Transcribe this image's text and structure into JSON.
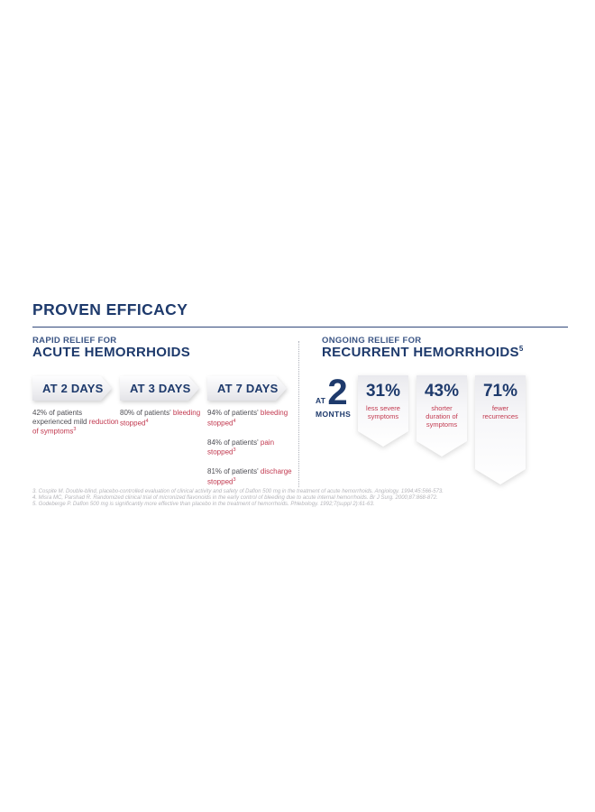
{
  "colors": {
    "navy": "#1e3a6c",
    "red": "#c23a50",
    "body_text": "#4f4f55",
    "footnote_gray": "#b6b6bb"
  },
  "title": "PROVEN EFFICACY",
  "left": {
    "eyebrow": "RAPID RELIEF FOR",
    "heading": "ACUTE HEMORRHOIDS",
    "columns": [
      {
        "banner": "AT 2 DAYS",
        "items": [
          {
            "plain": "42% of patients experienced mild ",
            "highlight": "reduction of symptoms",
            "sup": "3"
          }
        ]
      },
      {
        "banner": "AT 3 DAYS",
        "items": [
          {
            "plain": "80% of patients' ",
            "highlight": "bleeding stopped",
            "sup": "4"
          }
        ]
      },
      {
        "banner": "AT 7 DAYS",
        "items": [
          {
            "plain": "94% of patients' ",
            "highlight": "bleeding stopped",
            "sup": "4"
          },
          {
            "plain": "84% of patients' ",
            "highlight": "pain stopped",
            "sup": "3"
          },
          {
            "plain": "81% of patients' ",
            "highlight": "discharge stopped",
            "sup": "3"
          }
        ]
      }
    ]
  },
  "right": {
    "eyebrow": "ONGOING RELIEF FOR",
    "heading": "RECURRENT HEMORRHOIDS",
    "heading_sup": "5",
    "timeframe": {
      "prefix": "AT",
      "value": "2",
      "unit": "MONTHS"
    },
    "pennants": [
      {
        "value": "31%",
        "label": "less severe symptoms"
      },
      {
        "value": "43%",
        "label": "shorter duration of symptoms"
      },
      {
        "value": "71%",
        "label": "fewer recurrences"
      }
    ]
  },
  "footnotes": [
    "3. Cospite M. Double-blind, placebo-controlled evaluation of clinical activity and safety of Daflon 500 mg in the treatment of acute hemorrhoids. Angiology. 1994;45:566-573.",
    "4. Misra MC, Parshad R. Randomized clinical trial of micronized flavonoids in the early control of bleeding due to acute internal hemorrhoids. Br J Surg. 2000;87:868-872.",
    "5. Godeberge P. Daflon 500 mg is significantly more effective than placebo in the treatment of hemorrhoids. Phlebology. 1992;7(suppl 2):61-63."
  ]
}
